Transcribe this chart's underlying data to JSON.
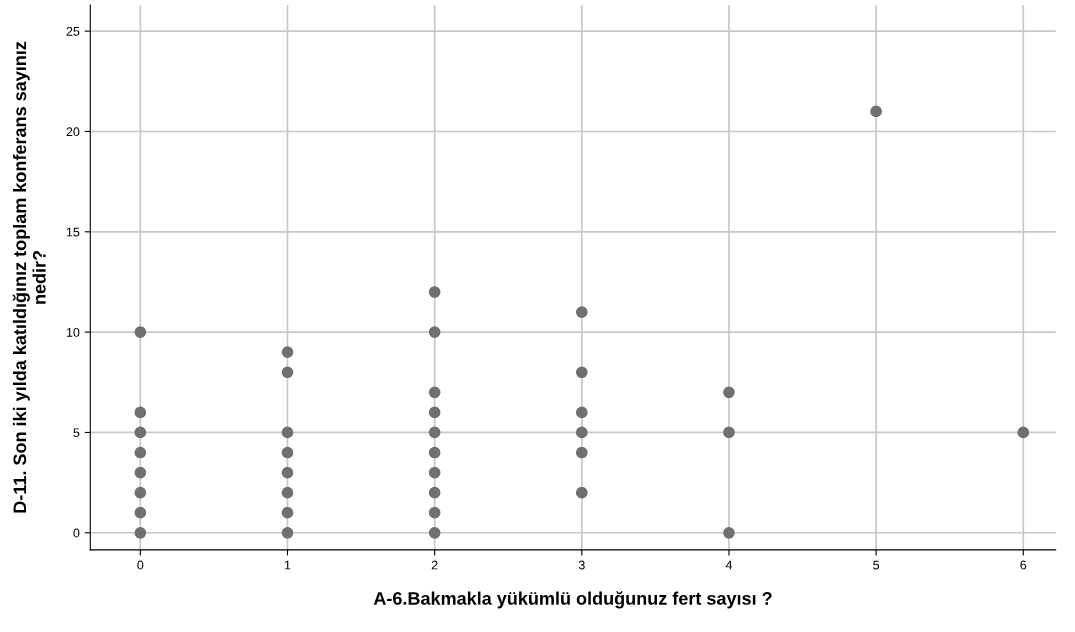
{
  "chart_data": {
    "type": "scatter",
    "xlabel": "A-6.Bakmakla yükümlü olduğunuz fert sayısı ?",
    "ylabel": "D-11. Son iki yılda katıldığınız toplam konferans sayınız\nnedir?",
    "series": [
      {
        "color": "#707070",
        "x": [
          0,
          0,
          0,
          0,
          0,
          0,
          0,
          0,
          1,
          1,
          1,
          1,
          1,
          1,
          1,
          1,
          2,
          2,
          2,
          2,
          2,
          2,
          2,
          2,
          2,
          2,
          3,
          3,
          3,
          3,
          3,
          3,
          4,
          4,
          4,
          5,
          6
        ],
        "values": [
          10,
          6,
          5,
          4,
          3,
          2,
          1,
          0,
          9,
          8,
          5,
          4,
          3,
          2,
          1,
          0,
          12,
          10,
          7,
          6,
          5,
          4,
          3,
          2,
          1,
          0,
          11,
          8,
          6,
          5,
          4,
          2,
          7,
          5,
          0,
          21,
          5
        ]
      }
    ],
    "xlim": [
      -0.34,
      6.22
    ],
    "xticks": [
      0,
      1,
      2,
      3,
      4,
      5,
      6
    ],
    "ylim": [
      -0.85,
      26.3
    ],
    "yticks": [
      0,
      5,
      10,
      15,
      20,
      25
    ],
    "grid": true,
    "marker": "circle"
  }
}
